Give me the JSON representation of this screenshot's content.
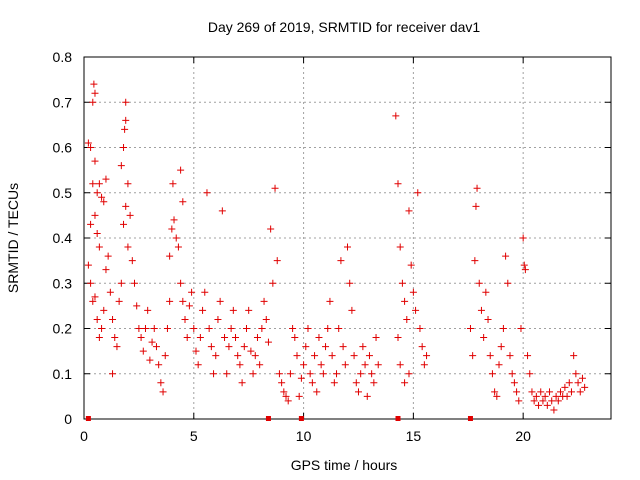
{
  "chart_data": {
    "type": "scatter",
    "title": "Day 269 of 2019, SRMTID for receiver dav1",
    "xlabel": "GPS time / hours",
    "ylabel": "SRMTID / TECUs",
    "xlim": [
      0,
      24
    ],
    "ylim": [
      0,
      0.8
    ],
    "xticks": [
      0,
      5,
      10,
      15,
      20
    ],
    "xtick_labels": [
      "0",
      "5",
      "10",
      "15",
      "20"
    ],
    "yticks": [
      0,
      0.1,
      0.2,
      0.3,
      0.4,
      0.5,
      0.6,
      0.7,
      0.8
    ],
    "ytick_labels": [
      "0",
      "0.1",
      "0.2",
      "0.3",
      "0.4",
      "0.5",
      "0.6",
      "0.7",
      "0.8"
    ],
    "grid": true,
    "marker": "+",
    "color": "#e00000",
    "series": [
      {
        "name": "SRMTID",
        "points": [
          [
            0.2,
            0.61
          ],
          [
            0.3,
            0.6
          ],
          [
            0.4,
            0.7
          ],
          [
            0.45,
            0.74
          ],
          [
            0.5,
            0.72
          ],
          [
            0.5,
            0.57
          ],
          [
            0.4,
            0.52
          ],
          [
            0.6,
            0.5
          ],
          [
            0.7,
            0.52
          ],
          [
            0.8,
            0.49
          ],
          [
            0.9,
            0.48
          ],
          [
            1.0,
            0.53
          ],
          [
            0.3,
            0.43
          ],
          [
            0.5,
            0.45
          ],
          [
            0.6,
            0.41
          ],
          [
            0.7,
            0.38
          ],
          [
            0.2,
            0.34
          ],
          [
            0.3,
            0.3
          ],
          [
            0.4,
            0.26
          ],
          [
            0.5,
            0.27
          ],
          [
            0.6,
            0.22
          ],
          [
            0.7,
            0.18
          ],
          [
            0.8,
            0.2
          ],
          [
            0.9,
            0.24
          ],
          [
            1.0,
            0.33
          ],
          [
            1.1,
            0.36
          ],
          [
            1.2,
            0.28
          ],
          [
            1.3,
            0.22
          ],
          [
            1.4,
            0.18
          ],
          [
            1.5,
            0.16
          ],
          [
            1.3,
            0.1
          ],
          [
            1.6,
            0.26
          ],
          [
            1.7,
            0.3
          ],
          [
            1.8,
            0.43
          ],
          [
            1.7,
            0.56
          ],
          [
            1.8,
            0.6
          ],
          [
            1.85,
            0.64
          ],
          [
            1.9,
            0.66
          ],
          [
            1.9,
            0.7
          ],
          [
            2.0,
            0.52
          ],
          [
            1.9,
            0.47
          ],
          [
            2.1,
            0.45
          ],
          [
            2.0,
            0.38
          ],
          [
            2.2,
            0.35
          ],
          [
            2.3,
            0.3
          ],
          [
            2.4,
            0.25
          ],
          [
            2.5,
            0.2
          ],
          [
            2.6,
            0.18
          ],
          [
            2.7,
            0.15
          ],
          [
            2.8,
            0.2
          ],
          [
            2.9,
            0.24
          ],
          [
            3.0,
            0.13
          ],
          [
            3.1,
            0.17
          ],
          [
            3.2,
            0.2
          ],
          [
            3.3,
            0.16
          ],
          [
            3.4,
            0.12
          ],
          [
            3.5,
            0.08
          ],
          [
            3.6,
            0.06
          ],
          [
            3.7,
            0.14
          ],
          [
            3.8,
            0.2
          ],
          [
            3.9,
            0.26
          ],
          [
            3.9,
            0.36
          ],
          [
            4.0,
            0.42
          ],
          [
            4.05,
            0.52
          ],
          [
            4.1,
            0.44
          ],
          [
            4.2,
            0.4
          ],
          [
            4.3,
            0.38
          ],
          [
            4.4,
            0.55
          ],
          [
            4.5,
            0.48
          ],
          [
            4.4,
            0.3
          ],
          [
            4.5,
            0.26
          ],
          [
            4.6,
            0.22
          ],
          [
            4.7,
            0.18
          ],
          [
            4.8,
            0.25
          ],
          [
            4.9,
            0.28
          ],
          [
            5.0,
            0.2
          ],
          [
            5.1,
            0.15
          ],
          [
            5.2,
            0.12
          ],
          [
            5.3,
            0.18
          ],
          [
            5.4,
            0.24
          ],
          [
            5.5,
            0.28
          ],
          [
            5.6,
            0.5
          ],
          [
            5.7,
            0.2
          ],
          [
            5.8,
            0.16
          ],
          [
            5.9,
            0.1
          ],
          [
            6.0,
            0.14
          ],
          [
            6.1,
            0.22
          ],
          [
            6.2,
            0.26
          ],
          [
            6.3,
            0.46
          ],
          [
            6.4,
            0.18
          ],
          [
            6.5,
            0.1
          ],
          [
            6.6,
            0.16
          ],
          [
            6.7,
            0.2
          ],
          [
            6.8,
            0.24
          ],
          [
            6.9,
            0.18
          ],
          [
            7.0,
            0.14
          ],
          [
            7.1,
            0.12
          ],
          [
            7.2,
            0.08
          ],
          [
            7.3,
            0.16
          ],
          [
            7.4,
            0.2
          ],
          [
            7.5,
            0.24
          ],
          [
            7.6,
            0.15
          ],
          [
            7.7,
            0.1
          ],
          [
            7.8,
            0.14
          ],
          [
            7.9,
            0.18
          ],
          [
            8.0,
            0.12
          ],
          [
            8.1,
            0.2
          ],
          [
            8.2,
            0.26
          ],
          [
            8.3,
            0.22
          ],
          [
            8.4,
            0.17
          ],
          [
            8.5,
            0.42
          ],
          [
            8.6,
            0.3
          ],
          [
            8.7,
            0.51
          ],
          [
            8.8,
            0.35
          ],
          [
            8.9,
            0.1
          ],
          [
            9.0,
            0.08
          ],
          [
            9.1,
            0.06
          ],
          [
            9.2,
            0.05
          ],
          [
            9.3,
            0.04
          ],
          [
            9.4,
            0.1
          ],
          [
            9.5,
            0.2
          ],
          [
            9.6,
            0.18
          ],
          [
            9.7,
            0.14
          ],
          [
            9.8,
            0.05
          ],
          [
            9.9,
            0.09
          ],
          [
            10.0,
            0.12
          ],
          [
            10.1,
            0.16
          ],
          [
            10.2,
            0.2
          ],
          [
            10.3,
            0.1
          ],
          [
            10.4,
            0.08
          ],
          [
            10.5,
            0.14
          ],
          [
            10.6,
            0.06
          ],
          [
            10.7,
            0.18
          ],
          [
            10.8,
            0.12
          ],
          [
            10.9,
            0.1
          ],
          [
            11.0,
            0.16
          ],
          [
            11.1,
            0.2
          ],
          [
            11.2,
            0.26
          ],
          [
            11.3,
            0.14
          ],
          [
            11.4,
            0.08
          ],
          [
            11.5,
            0.1
          ],
          [
            11.6,
            0.2
          ],
          [
            11.7,
            0.35
          ],
          [
            11.8,
            0.16
          ],
          [
            11.9,
            0.12
          ],
          [
            12.0,
            0.38
          ],
          [
            12.1,
            0.3
          ],
          [
            12.2,
            0.24
          ],
          [
            12.3,
            0.14
          ],
          [
            12.4,
            0.08
          ],
          [
            12.5,
            0.06
          ],
          [
            12.6,
            0.1
          ],
          [
            12.7,
            0.16
          ],
          [
            12.8,
            0.12
          ],
          [
            12.9,
            0.05
          ],
          [
            13.0,
            0.14
          ],
          [
            13.1,
            0.1
          ],
          [
            13.2,
            0.08
          ],
          [
            13.3,
            0.18
          ],
          [
            13.4,
            0.12
          ],
          [
            14.2,
            0.67
          ],
          [
            14.3,
            0.52
          ],
          [
            14.4,
            0.38
          ],
          [
            14.5,
            0.3
          ],
          [
            14.6,
            0.26
          ],
          [
            14.7,
            0.22
          ],
          [
            14.8,
            0.46
          ],
          [
            14.9,
            0.34
          ],
          [
            15.0,
            0.28
          ],
          [
            15.1,
            0.24
          ],
          [
            15.2,
            0.5
          ],
          [
            15.3,
            0.2
          ],
          [
            15.4,
            0.16
          ],
          [
            15.5,
            0.12
          ],
          [
            15.6,
            0.14
          ],
          [
            14.4,
            0.12
          ],
          [
            14.6,
            0.08
          ],
          [
            14.8,
            0.1
          ],
          [
            14.3,
            0.18
          ],
          [
            17.6,
            0.2
          ],
          [
            17.7,
            0.14
          ],
          [
            17.8,
            0.35
          ],
          [
            17.85,
            0.47
          ],
          [
            17.9,
            0.51
          ],
          [
            18.0,
            0.3
          ],
          [
            18.1,
            0.24
          ],
          [
            18.2,
            0.18
          ],
          [
            18.3,
            0.28
          ],
          [
            18.4,
            0.22
          ],
          [
            18.5,
            0.14
          ],
          [
            18.6,
            0.1
          ],
          [
            18.7,
            0.06
          ],
          [
            18.8,
            0.05
          ],
          [
            18.9,
            0.12
          ],
          [
            19.0,
            0.16
          ],
          [
            19.1,
            0.2
          ],
          [
            19.2,
            0.36
          ],
          [
            19.3,
            0.3
          ],
          [
            19.4,
            0.14
          ],
          [
            19.5,
            0.1
          ],
          [
            19.6,
            0.08
          ],
          [
            19.7,
            0.06
          ],
          [
            19.8,
            0.04
          ],
          [
            19.9,
            0.2
          ],
          [
            20.0,
            0.4
          ],
          [
            20.05,
            0.34
          ],
          [
            20.1,
            0.33
          ],
          [
            20.2,
            0.14
          ],
          [
            20.3,
            0.1
          ],
          [
            20.4,
            0.06
          ],
          [
            20.5,
            0.04
          ],
          [
            20.6,
            0.05
          ],
          [
            20.7,
            0.03
          ],
          [
            20.8,
            0.06
          ],
          [
            20.9,
            0.04
          ],
          [
            21.0,
            0.05
          ],
          [
            21.1,
            0.03
          ],
          [
            21.2,
            0.06
          ],
          [
            21.3,
            0.04
          ],
          [
            21.4,
            0.02
          ],
          [
            21.5,
            0.05
          ],
          [
            21.6,
            0.04
          ],
          [
            21.7,
            0.06
          ],
          [
            21.8,
            0.05
          ],
          [
            21.9,
            0.07
          ],
          [
            22.0,
            0.05
          ],
          [
            22.1,
            0.08
          ],
          [
            22.2,
            0.06
          ],
          [
            22.3,
            0.14
          ],
          [
            22.4,
            0.1
          ],
          [
            22.5,
            0.08
          ],
          [
            22.6,
            0.06
          ],
          [
            22.7,
            0.09
          ],
          [
            22.8,
            0.07
          ]
        ]
      }
    ],
    "baseline_markers_x": [
      0.2,
      8.4,
      9.9,
      14.3,
      17.6
    ]
  }
}
